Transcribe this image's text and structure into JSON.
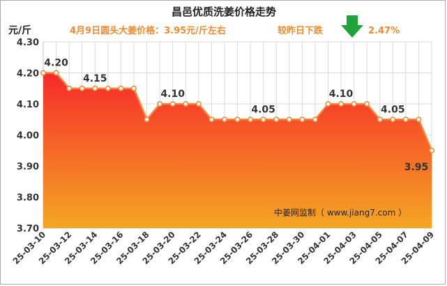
{
  "chart_data": {
    "type": "area",
    "title": "昌邑优质洗姜价格走势",
    "subtitle": "4月9日圆头大姜价格：3.95元/斤左右",
    "change_text": "较昨日下跌",
    "change_value": "2.47%",
    "change_direction_icon": "arrow-down-icon",
    "unit": "元/斤",
    "credit": "中姜网监制（ www.jiang7.com ）",
    "ylim": [
      3.7,
      4.3
    ],
    "yticks": [
      "3.70",
      "3.80",
      "3.90",
      "4.00",
      "4.10",
      "4.20",
      "4.30"
    ],
    "grid": true,
    "x": [
      "25-03-10",
      "25-03-11",
      "25-03-12",
      "25-03-13",
      "25-03-14",
      "25-03-15",
      "25-03-16",
      "25-03-17",
      "25-03-18",
      "25-03-19",
      "25-03-20",
      "25-03-21",
      "25-03-22",
      "25-03-23",
      "25-03-24",
      "25-03-25",
      "25-03-26",
      "25-03-27",
      "25-03-28",
      "25-03-29",
      "25-03-30",
      "25-03-31",
      "25-04-01",
      "25-04-02",
      "25-04-03",
      "25-04-04",
      "25-04-05",
      "25-04-06",
      "25-04-07",
      "25-04-08",
      "25-04-09"
    ],
    "xtick_labels": [
      "25-03-10",
      "25-03-12",
      "25-03-14",
      "25-03-16",
      "25-03-18",
      "25-03-20",
      "25-03-22",
      "25-03-24",
      "25-03-26",
      "25-03-28",
      "25-03-30",
      "25-04-01",
      "25-04-03",
      "25-04-05",
      "25-04-07",
      "25-04-09"
    ],
    "values": [
      4.2,
      4.2,
      4.15,
      4.15,
      4.15,
      4.15,
      4.15,
      4.15,
      4.05,
      4.1,
      4.1,
      4.1,
      4.1,
      4.05,
      4.05,
      4.05,
      4.05,
      4.05,
      4.05,
      4.05,
      4.05,
      4.05,
      4.1,
      4.1,
      4.1,
      4.1,
      4.05,
      4.05,
      4.05,
      4.05,
      3.95
    ],
    "data_labels": [
      {
        "index": 1,
        "text": "4.20"
      },
      {
        "index": 4,
        "text": "4.15"
      },
      {
        "index": 10,
        "text": "4.10"
      },
      {
        "index": 17,
        "text": "4.05"
      },
      {
        "index": 23,
        "text": "4.10"
      },
      {
        "index": 27,
        "text": "4.05"
      },
      {
        "index": 30,
        "text": "3.95"
      }
    ],
    "colors": {
      "line": "#f0883a",
      "marker_fill": "#ffffff",
      "area_top": "#f62a2a",
      "area_bottom": "#f5a623",
      "grid": "#d9d9d9",
      "arrow": "#1fa33a"
    }
  }
}
